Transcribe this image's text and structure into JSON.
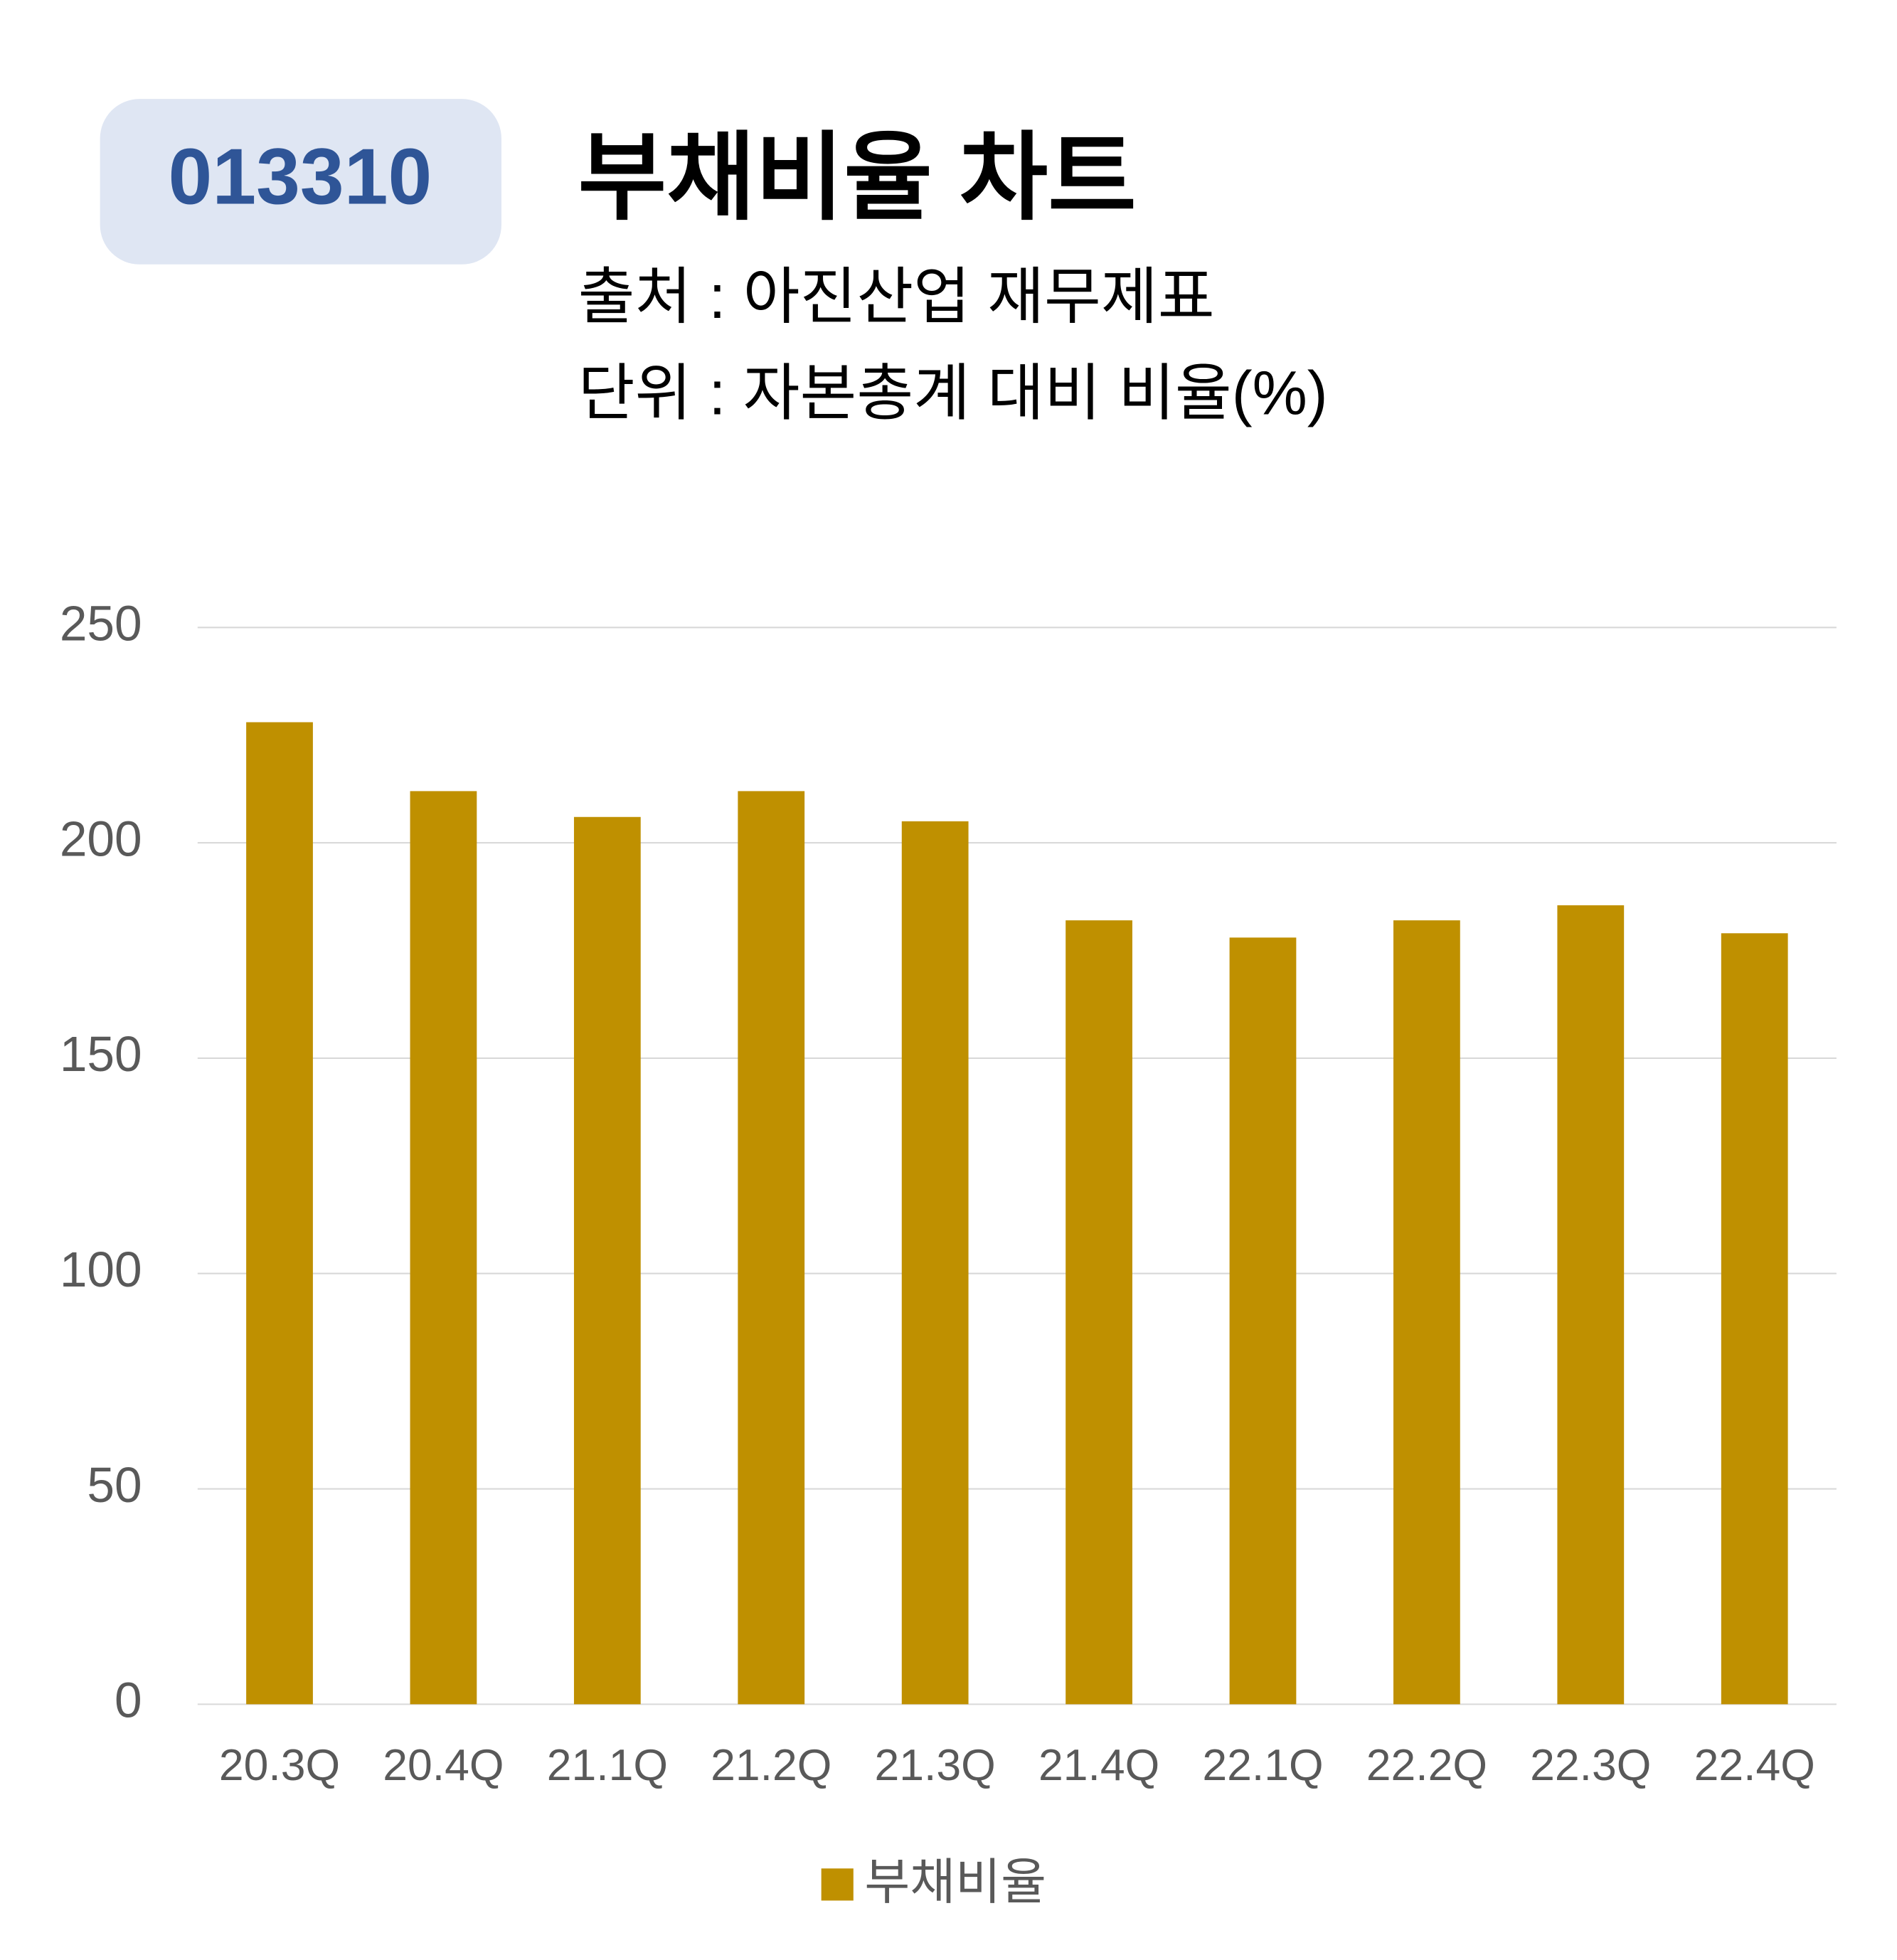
{
  "badge": "013310",
  "chart_data": {
    "type": "bar",
    "title": "부채비율 차트",
    "subtitle": [
      "출처 : 아진산업 재무제표",
      "단위 : 자본총계 대비 비율(%)"
    ],
    "categories": [
      "20.3Q",
      "20.4Q",
      "21.1Q",
      "21.2Q",
      "21.3Q",
      "21.4Q",
      "22.1Q",
      "22.2Q",
      "22.3Q",
      "22.4Q"
    ],
    "series": [
      {
        "name": "부채비율",
        "color": "#bf9000",
        "values": [
          228,
          212,
          206,
          212,
          205,
          182,
          178,
          182,
          185.5,
          179
        ]
      }
    ],
    "ylim": [
      0,
      250
    ],
    "yticks": [
      0,
      50,
      100,
      150,
      200,
      250
    ],
    "grid": true,
    "legend": "bottom"
  }
}
